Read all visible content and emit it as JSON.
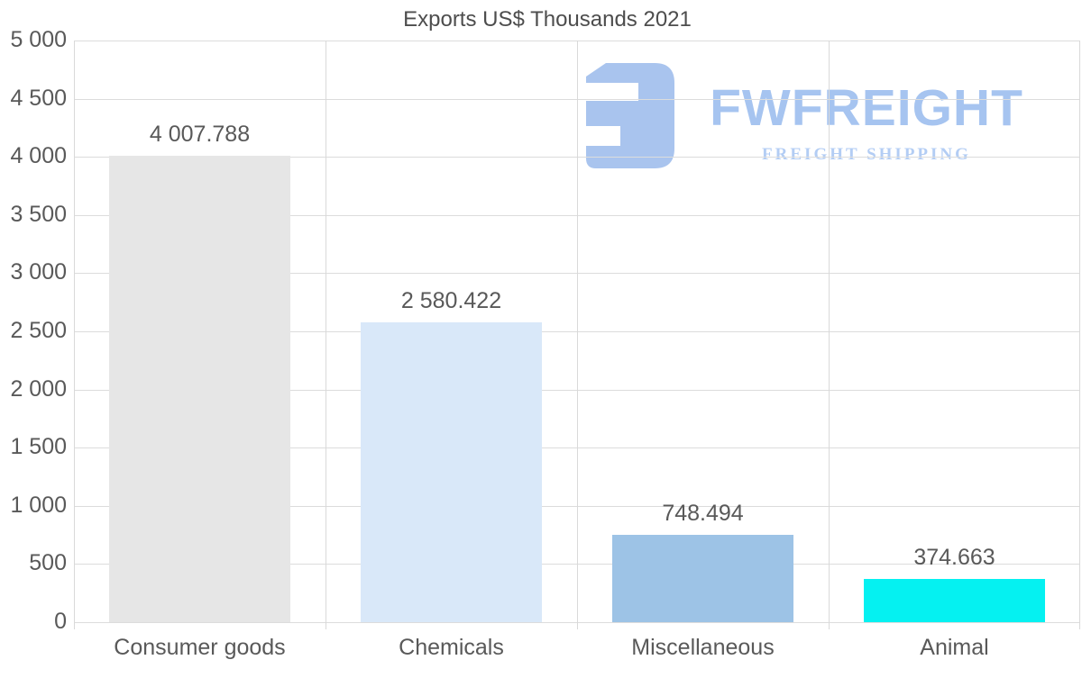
{
  "chart_data": {
    "type": "bar",
    "title": "Exports US$ Thousands 2021",
    "categories": [
      "Consumer goods",
      "Chemicals",
      "Miscellaneous",
      "Animal"
    ],
    "values": [
      4007.788,
      2580.422,
      748.494,
      374.663
    ],
    "value_labels": [
      "4 007.788",
      "2 580.422",
      "748.494",
      "374.663"
    ],
    "bar_colors": [
      "#e6e6e6",
      "#d9e8f9",
      "#9dc3e6",
      "#05f1f1"
    ],
    "xlabel": "",
    "ylabel": "",
    "ylim": [
      0,
      5000
    ],
    "ytick_values": [
      0,
      500,
      1000,
      1500,
      2000,
      2500,
      3000,
      3500,
      4000,
      4500,
      5000
    ],
    "ytick_labels": [
      "0",
      "500",
      "1 000",
      "1 500",
      "2 000",
      "2 500",
      "3 000",
      "3 500",
      "4 000",
      "4 500",
      "5 000"
    ],
    "grid": true,
    "legend": false
  },
  "watermark": {
    "brand": "FWFREIGHT",
    "tagline": "FREIGHT SHIPPING",
    "glyph_color": "#a9c4ee",
    "brand_color": "#a6c4f0",
    "tagline_color": "#b3cdf4"
  },
  "style": {
    "background": "#ffffff",
    "gridline_color": "#dcdcdc",
    "text_color": "#595959",
    "title_color": "#4d4d4d"
  }
}
